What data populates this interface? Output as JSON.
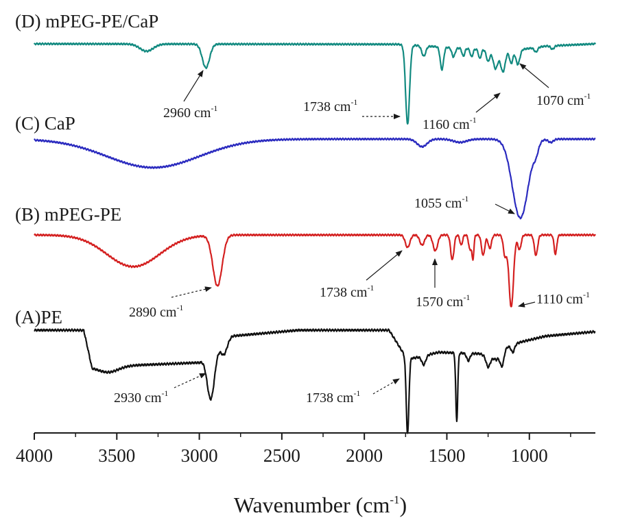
{
  "chart_data": {
    "type": "line",
    "xlabel_main": "Wavenumber (cm",
    "xlabel_sup": "-1",
    "xlabel_tail": ")",
    "xlim": [
      4000,
      600
    ],
    "x_ticks": [
      4000,
      3500,
      3000,
      2500,
      2000,
      1500,
      1000
    ],
    "x_tick_labels": [
      "4000",
      "3500",
      "3000",
      "2500",
      "2000",
      "1500",
      "1000"
    ],
    "y_axis_shown": false,
    "grid": false,
    "series": [
      {
        "name": "(D) mPEG-PE/CaP",
        "color": "#128a80",
        "baseline": 0.0,
        "trend": [
          [
            4000,
            0.0
          ],
          [
            1800,
            0.02
          ],
          [
            1400,
            0.2
          ],
          [
            1200,
            0.3
          ],
          [
            1050,
            0.25
          ],
          [
            900,
            0.1
          ],
          [
            600,
            0.0
          ]
        ],
        "peaks": [
          {
            "x": 3320,
            "depth": 0.32,
            "width": 40
          },
          {
            "x": 2960,
            "depth": 1.05,
            "width": 22
          },
          {
            "x": 1738,
            "depth": 3.5,
            "width": 12
          },
          {
            "x": 1640,
            "depth": 0.45,
            "width": 12
          },
          {
            "x": 1530,
            "depth": 1.0,
            "width": 10
          },
          {
            "x": 1460,
            "depth": 0.4,
            "width": 10
          },
          {
            "x": 1400,
            "depth": 0.35,
            "width": 8
          },
          {
            "x": 1350,
            "depth": 0.35,
            "width": 8
          },
          {
            "x": 1300,
            "depth": 0.4,
            "width": 8
          },
          {
            "x": 1250,
            "depth": 0.5,
            "width": 10
          },
          {
            "x": 1205,
            "depth": 0.8,
            "width": 14
          },
          {
            "x": 1160,
            "depth": 0.95,
            "width": 14
          },
          {
            "x": 1110,
            "depth": 0.6,
            "width": 10
          },
          {
            "x": 1070,
            "depth": 0.65,
            "width": 12
          },
          {
            "x": 960,
            "depth": 0.2,
            "width": 10
          },
          {
            "x": 860,
            "depth": 0.15,
            "width": 10
          }
        ]
      },
      {
        "name": "(C) CaP",
        "color": "#2b2bbf",
        "baseline": 0.0,
        "trend": [
          [
            4000,
            0.0
          ],
          [
            600,
            0.0
          ]
        ],
        "peaks": [
          {
            "x": 3280,
            "depth": 1.3,
            "width": 280
          },
          {
            "x": 1650,
            "depth": 0.35,
            "width": 30
          },
          {
            "x": 1420,
            "depth": 0.15,
            "width": 40
          },
          {
            "x": 1055,
            "depth": 3.6,
            "width": 48
          },
          {
            "x": 960,
            "depth": 0.4,
            "width": 15
          },
          {
            "x": 870,
            "depth": 0.15,
            "width": 15
          }
        ]
      },
      {
        "name": "(B) mPEG-PE",
        "color": "#d42020",
        "baseline": 0.0,
        "trend": [
          [
            4000,
            0.0
          ],
          [
            600,
            0.0
          ]
        ],
        "peaks": [
          {
            "x": 3400,
            "depth": 1.4,
            "width": 160
          },
          {
            "x": 2890,
            "depth": 2.25,
            "width": 28
          },
          {
            "x": 1738,
            "depth": 0.55,
            "width": 14
          },
          {
            "x": 1650,
            "depth": 0.45,
            "width": 14
          },
          {
            "x": 1570,
            "depth": 0.7,
            "width": 14
          },
          {
            "x": 1467,
            "depth": 1.1,
            "width": 10
          },
          {
            "x": 1413,
            "depth": 0.45,
            "width": 8
          },
          {
            "x": 1360,
            "depth": 0.65,
            "width": 8
          },
          {
            "x": 1342,
            "depth": 1.05,
            "width": 6
          },
          {
            "x": 1280,
            "depth": 0.9,
            "width": 10
          },
          {
            "x": 1240,
            "depth": 0.6,
            "width": 10
          },
          {
            "x": 1148,
            "depth": 0.9,
            "width": 10
          },
          {
            "x": 1110,
            "depth": 3.2,
            "width": 14
          },
          {
            "x": 1060,
            "depth": 0.65,
            "width": 10
          },
          {
            "x": 960,
            "depth": 0.9,
            "width": 10
          },
          {
            "x": 842,
            "depth": 0.85,
            "width": 8
          }
        ]
      },
      {
        "name": "(A)PE",
        "color": "#111111",
        "baseline": 0.0,
        "trend": [
          [
            4000,
            0.0
          ],
          [
            3700,
            0.0
          ],
          [
            3650,
            1.25
          ],
          [
            3000,
            1.1
          ],
          [
            2800,
            0.2
          ],
          [
            2400,
            0.0
          ],
          [
            1850,
            0.0
          ],
          [
            1750,
            0.9
          ],
          [
            1700,
            0.95
          ],
          [
            1550,
            0.75
          ],
          [
            1300,
            0.8
          ],
          [
            1200,
            1.0
          ],
          [
            1150,
            0.6
          ],
          [
            1050,
            0.4
          ],
          [
            900,
            0.2
          ],
          [
            700,
            0.1
          ],
          [
            600,
            0.05
          ]
        ],
        "peaks": [
          {
            "x": 3550,
            "depth": 0.2,
            "width": 60
          },
          {
            "x": 2930,
            "depth": 1.55,
            "width": 22
          },
          {
            "x": 2850,
            "depth": 0.4,
            "width": 18
          },
          {
            "x": 1738,
            "depth": 2.6,
            "width": 8
          },
          {
            "x": 1640,
            "depth": 0.3,
            "width": 12
          },
          {
            "x": 1440,
            "depth": 2.3,
            "width": 6
          },
          {
            "x": 1370,
            "depth": 0.25,
            "width": 10
          },
          {
            "x": 1250,
            "depth": 0.35,
            "width": 12
          },
          {
            "x": 1165,
            "depth": 0.5,
            "width": 12
          },
          {
            "x": 1100,
            "depth": 0.25,
            "width": 10
          }
        ]
      }
    ],
    "labels": [
      {
        "id": "d",
        "text": "(D) mPEG-PE/CaP"
      },
      {
        "id": "c",
        "text": "(C) CaP"
      },
      {
        "id": "b",
        "text": "(B) mPEG-PE"
      },
      {
        "id": "a",
        "text": "(A)PE"
      }
    ],
    "annotations": [
      {
        "id": "d2960",
        "value": "2960 cm",
        "sup": "-1"
      },
      {
        "id": "d1738",
        "value": "1738 cm",
        "sup": "-1"
      },
      {
        "id": "d1160",
        "value": "1160 cm",
        "sup": "-1"
      },
      {
        "id": "d1070",
        "value": "1070 cm",
        "sup": "-1"
      },
      {
        "id": "c1055",
        "value": "1055 cm",
        "sup": "-1"
      },
      {
        "id": "b2890",
        "value": "2890 cm",
        "sup": "-1"
      },
      {
        "id": "b1738",
        "value": "1738 cm",
        "sup": "-1"
      },
      {
        "id": "b1570",
        "value": "1570 cm",
        "sup": "-1"
      },
      {
        "id": "b1110",
        "value": "1110 cm",
        "sup": "-1"
      },
      {
        "id": "a2930",
        "value": "2930 cm",
        "sup": "-1"
      },
      {
        "id": "a1738",
        "value": "1738 cm",
        "sup": "-1"
      }
    ]
  }
}
